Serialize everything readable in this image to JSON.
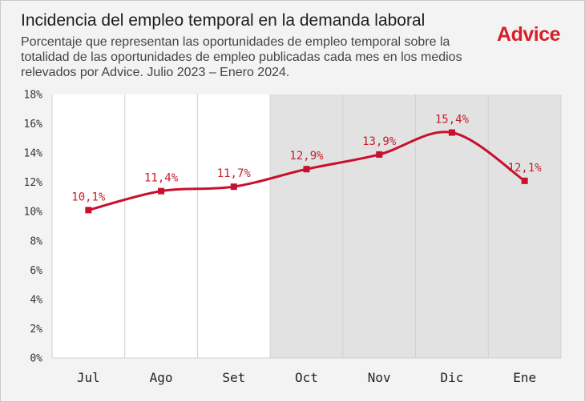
{
  "header": {
    "title": "Incidencia del empleo temporal en la demanda laboral",
    "subtitle": "Porcentaje que representan las oportunidades de empleo temporal sobre la totalidad de las oportunidades de empleo publicadas cada mes en los medios relevados por Advice. Julio 2023 – Enero 2024.",
    "brand": "Advice"
  },
  "colors": {
    "line": "#c8102e",
    "marker": "#c8102e",
    "label": "#c81d2a",
    "plot_bg": "#ffffff",
    "shade_bg": "#e2e2e2",
    "grid": "#d0d0d0",
    "brand": "#d61f2a"
  },
  "chart_data": {
    "type": "line",
    "title": "Incidencia del empleo temporal en la demanda laboral",
    "categories": [
      "Jul",
      "Ago",
      "Set",
      "Oct",
      "Nov",
      "Dic",
      "Ene"
    ],
    "series": [
      {
        "values": [
          10.1,
          11.4,
          11.7,
          12.9,
          13.9,
          15.4,
          12.1
        ]
      }
    ],
    "data_labels": [
      "10,1%",
      "11,4%",
      "11,7%",
      "12,9%",
      "13,9%",
      "15,4%",
      "12,1%"
    ],
    "ylim": [
      0,
      18
    ],
    "y_ticks": [
      0,
      2,
      4,
      6,
      8,
      10,
      12,
      14,
      16,
      18
    ],
    "y_tick_labels": [
      "0%",
      "2%",
      "4%",
      "6%",
      "8%",
      "10%",
      "12%",
      "14%",
      "16%",
      "18%"
    ],
    "shaded_from_category": "Oct",
    "grid": "vertical",
    "smooth": true
  }
}
